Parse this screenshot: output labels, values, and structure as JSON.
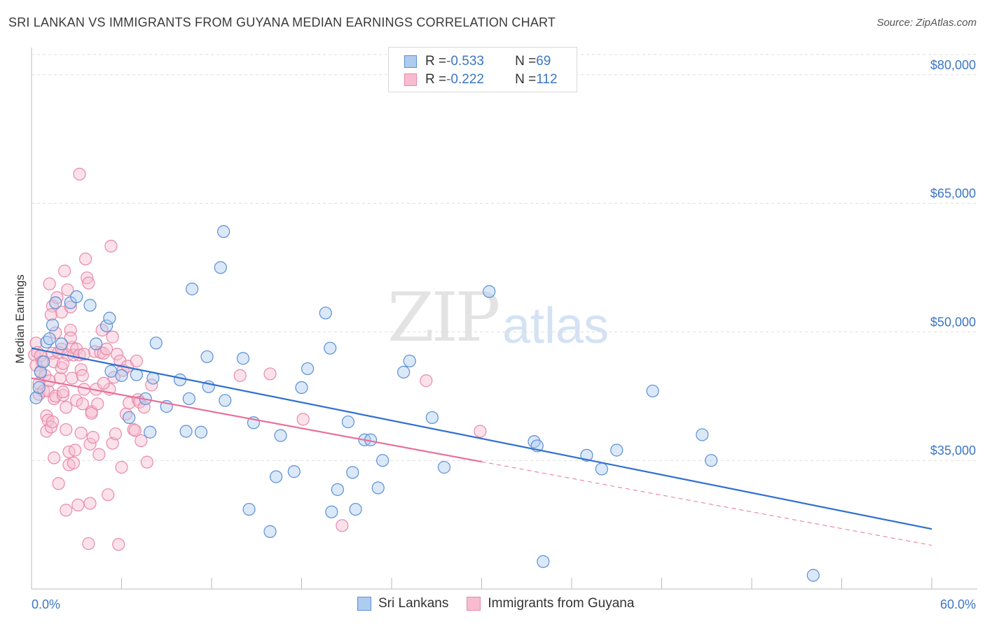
{
  "title": "SRI LANKAN VS IMMIGRANTS FROM GUYANA MEDIAN EARNINGS CORRELATION CHART",
  "source": "Source: ZipAtlas.com",
  "watermark": {
    "zip": "ZIP",
    "atlas": "atlas"
  },
  "legend_top": [
    {
      "r_label": "R = ",
      "r_value": "-0.533",
      "n_label": "N = ",
      "n_value": "69"
    },
    {
      "r_label": "R = ",
      "r_value": "-0.222",
      "n_label": "N = ",
      "n_value": "112"
    }
  ],
  "colors": {
    "blue_fill": "#aecbf0",
    "blue_stroke": "#5b8fd6",
    "blue_line": "#2f6fcf",
    "pink_fill": "#f7bcd0",
    "pink_stroke": "#e88aa8",
    "pink_line": "#e8709a",
    "tick_text": "#3b76c4",
    "grid": "#dddddd"
  },
  "chart_data": {
    "type": "scatter",
    "title": "SRI LANKAN VS IMMIGRANTS FROM GUYANA MEDIAN EARNINGS CORRELATION CHART",
    "xlabel": "",
    "ylabel": "Median Earnings",
    "xlim": [
      0,
      60
    ],
    "ylim": [
      20000,
      83000
    ],
    "x_tick_labels": [
      "0.0%",
      "60.0%"
    ],
    "y_ticks": [
      35000,
      50000,
      65000,
      80000
    ],
    "y_tick_labels": [
      "$35,000",
      "$50,000",
      "$65,000",
      "$80,000"
    ],
    "grid": true,
    "legend_position": "top-center",
    "series": [
      {
        "name": "Sri Lankans",
        "r": -0.533,
        "n": 69,
        "trend": {
          "x0": 0,
          "y0": 48100,
          "x1": 60,
          "y1": 27000,
          "solid_to_x": 60
        },
        "points": [
          [
            0.3,
            42300
          ],
          [
            0.5,
            43500
          ],
          [
            0.6,
            45300
          ],
          [
            0.8,
            46500
          ],
          [
            1.0,
            48800
          ],
          [
            1.2,
            49200
          ],
          [
            1.4,
            50800
          ],
          [
            1.6,
            53400
          ],
          [
            2.0,
            48600
          ],
          [
            2.6,
            53400
          ],
          [
            3.0,
            54100
          ],
          [
            3.9,
            53100
          ],
          [
            4.3,
            48600
          ],
          [
            5.0,
            50700
          ],
          [
            5.2,
            51600
          ],
          [
            5.3,
            45400
          ],
          [
            6.0,
            44900
          ],
          [
            6.5,
            40000
          ],
          [
            7.0,
            45000
          ],
          [
            7.6,
            42200
          ],
          [
            7.9,
            38300
          ],
          [
            8.1,
            44600
          ],
          [
            8.3,
            48700
          ],
          [
            9.0,
            41300
          ],
          [
            9.9,
            44400
          ],
          [
            10.3,
            38400
          ],
          [
            10.5,
            42200
          ],
          [
            10.7,
            55000
          ],
          [
            11.3,
            38300
          ],
          [
            11.7,
            47100
          ],
          [
            11.8,
            43600
          ],
          [
            12.6,
            57500
          ],
          [
            12.8,
            61700
          ],
          [
            12.9,
            42000
          ],
          [
            14.1,
            46900
          ],
          [
            14.5,
            29300
          ],
          [
            14.8,
            39400
          ],
          [
            15.9,
            26700
          ],
          [
            16.3,
            33100
          ],
          [
            16.6,
            37900
          ],
          [
            17.5,
            33700
          ],
          [
            18.0,
            43500
          ],
          [
            18.4,
            45700
          ],
          [
            19.6,
            52200
          ],
          [
            19.9,
            48100
          ],
          [
            20.0,
            29000
          ],
          [
            20.4,
            31600
          ],
          [
            21.1,
            39500
          ],
          [
            21.4,
            33600
          ],
          [
            21.6,
            29300
          ],
          [
            22.2,
            37400
          ],
          [
            22.6,
            37400
          ],
          [
            23.1,
            31800
          ],
          [
            23.4,
            35000
          ],
          [
            24.8,
            45300
          ],
          [
            25.2,
            46600
          ],
          [
            26.7,
            40000
          ],
          [
            27.5,
            34200
          ],
          [
            30.5,
            54700
          ],
          [
            33.5,
            37200
          ],
          [
            33.7,
            36700
          ],
          [
            34.1,
            23200
          ],
          [
            37.0,
            35600
          ],
          [
            38.0,
            34000
          ],
          [
            39.0,
            36200
          ],
          [
            41.4,
            43100
          ],
          [
            44.7,
            38000
          ],
          [
            45.3,
            35000
          ],
          [
            52.1,
            21600
          ]
        ]
      },
      {
        "name": "Immigrants from Guyana",
        "r": -0.222,
        "n": 112,
        "trend": {
          "x0": 0,
          "y0": 44600,
          "x1": 60,
          "y1": 25100,
          "solid_to_x": 30
        },
        "points": [
          [
            0.2,
            47300
          ],
          [
            0.3,
            48700
          ],
          [
            0.3,
            46100
          ],
          [
            0.4,
            47600
          ],
          [
            0.5,
            44000
          ],
          [
            0.5,
            42700
          ],
          [
            0.6,
            45400
          ],
          [
            0.6,
            47200
          ],
          [
            0.7,
            46500
          ],
          [
            0.8,
            43100
          ],
          [
            0.9,
            44900
          ],
          [
            1.0,
            40200
          ],
          [
            1.0,
            38400
          ],
          [
            1.1,
            43100
          ],
          [
            1.1,
            39700
          ],
          [
            1.2,
            55600
          ],
          [
            1.2,
            44300
          ],
          [
            1.3,
            38900
          ],
          [
            1.4,
            39500
          ],
          [
            1.4,
            47500
          ],
          [
            1.4,
            53000
          ],
          [
            1.5,
            42200
          ],
          [
            1.5,
            46500
          ],
          [
            1.5,
            35300
          ],
          [
            1.6,
            49900
          ],
          [
            1.6,
            42500
          ],
          [
            1.7,
            54000
          ],
          [
            1.8,
            32300
          ],
          [
            1.8,
            47600
          ],
          [
            1.9,
            44600
          ],
          [
            2.0,
            52300
          ],
          [
            2.0,
            48000
          ],
          [
            2.0,
            45800
          ],
          [
            2.1,
            42600
          ],
          [
            2.1,
            43000
          ],
          [
            2.2,
            57100
          ],
          [
            2.3,
            38600
          ],
          [
            2.3,
            41200
          ],
          [
            2.3,
            29200
          ],
          [
            2.4,
            47300
          ],
          [
            2.4,
            54900
          ],
          [
            2.5,
            36000
          ],
          [
            2.5,
            34500
          ],
          [
            2.6,
            50200
          ],
          [
            2.6,
            52900
          ],
          [
            2.7,
            44600
          ],
          [
            2.7,
            48200
          ],
          [
            2.8,
            47300
          ],
          [
            2.8,
            34700
          ],
          [
            2.9,
            36200
          ],
          [
            3.0,
            48000
          ],
          [
            3.0,
            42000
          ],
          [
            3.1,
            29800
          ],
          [
            3.2,
            68400
          ],
          [
            3.2,
            47300
          ],
          [
            3.3,
            38200
          ],
          [
            3.3,
            45600
          ],
          [
            3.4,
            44900
          ],
          [
            3.4,
            41600
          ],
          [
            3.5,
            43300
          ],
          [
            3.6,
            58500
          ],
          [
            3.7,
            56300
          ],
          [
            3.8,
            55700
          ],
          [
            3.8,
            25300
          ],
          [
            3.9,
            30000
          ],
          [
            3.9,
            36900
          ],
          [
            4.0,
            40700
          ],
          [
            4.0,
            40500
          ],
          [
            4.1,
            37700
          ],
          [
            4.2,
            47700
          ],
          [
            4.3,
            43300
          ],
          [
            4.4,
            41600
          ],
          [
            4.5,
            35700
          ],
          [
            4.6,
            47600
          ],
          [
            4.7,
            50200
          ],
          [
            4.8,
            47500
          ],
          [
            5.0,
            48000
          ],
          [
            5.1,
            31000
          ],
          [
            5.2,
            43300
          ],
          [
            5.3,
            60000
          ],
          [
            5.4,
            49400
          ],
          [
            5.4,
            37000
          ],
          [
            5.5,
            44700
          ],
          [
            5.6,
            38100
          ],
          [
            5.7,
            47400
          ],
          [
            5.8,
            25200
          ],
          [
            5.9,
            46600
          ],
          [
            6.0,
            34200
          ],
          [
            6.1,
            45500
          ],
          [
            6.3,
            40400
          ],
          [
            6.4,
            46000
          ],
          [
            6.5,
            41700
          ],
          [
            6.8,
            38600
          ],
          [
            6.9,
            38500
          ],
          [
            7.0,
            46600
          ],
          [
            7.1,
            42100
          ],
          [
            7.2,
            41800
          ],
          [
            7.3,
            37300
          ],
          [
            7.5,
            41200
          ],
          [
            7.7,
            34800
          ],
          [
            8.0,
            43800
          ],
          [
            13.9,
            44900
          ],
          [
            15.9,
            45100
          ],
          [
            18.1,
            39800
          ],
          [
            20.7,
            27400
          ],
          [
            26.3,
            44300
          ],
          [
            29.9,
            38400
          ],
          [
            2.1,
            46300
          ],
          [
            2.6,
            49300
          ],
          [
            3.5,
            47400
          ],
          [
            1.3,
            52000
          ],
          [
            4.8,
            44000
          ]
        ]
      }
    ]
  }
}
